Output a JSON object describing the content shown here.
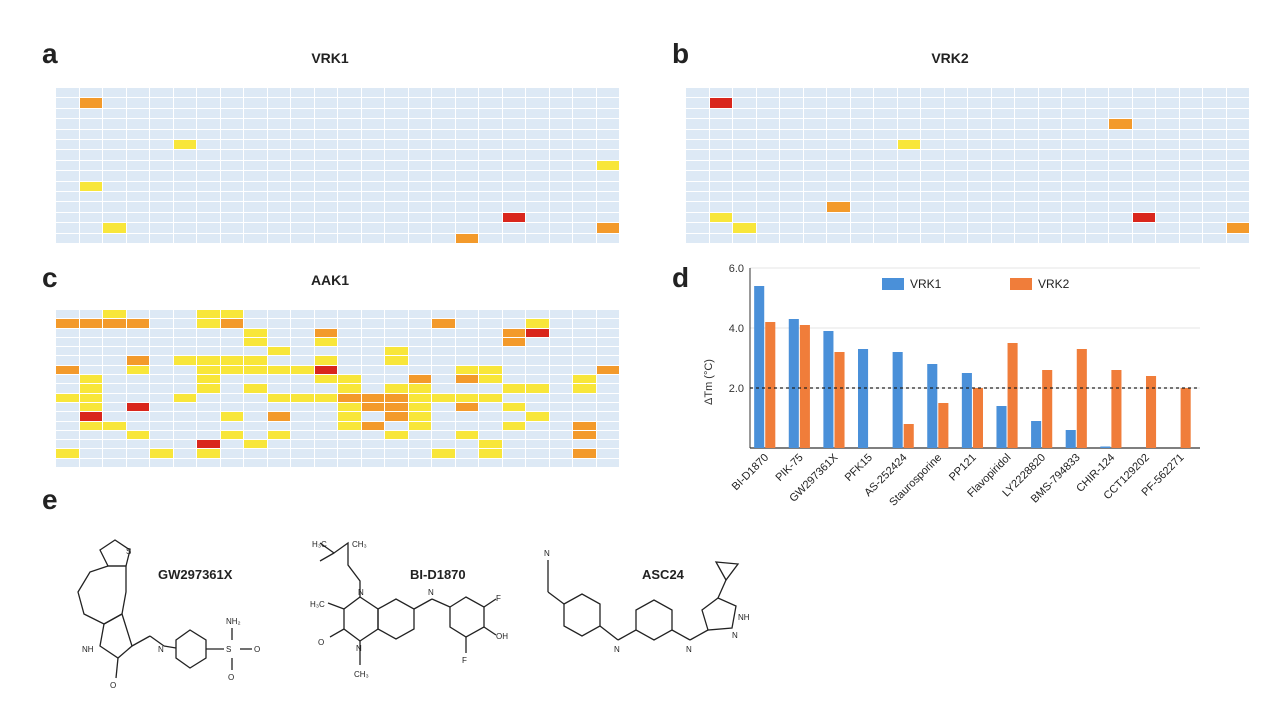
{
  "panels": {
    "a": {
      "letter": "a",
      "title": "VRK1"
    },
    "b": {
      "letter": "b",
      "title": "VRK2"
    },
    "c": {
      "letter": "c",
      "title": "AAK1"
    },
    "d": {
      "letter": "d"
    },
    "e": {
      "letter": "e"
    }
  },
  "heatmap_colors": {
    "base": "#dde9f5",
    "low": "#f8e63a",
    "mid": "#f39a2b",
    "high": "#d9261c"
  },
  "heatmaps": {
    "vrk1": {
      "rows": 15,
      "cols": 24,
      "hits": [
        [
          1,
          1,
          2
        ],
        [
          5,
          5,
          1
        ],
        [
          7,
          23,
          1
        ],
        [
          9,
          1,
          1
        ],
        [
          12,
          19,
          3
        ],
        [
          13,
          2,
          1
        ],
        [
          13,
          23,
          2
        ],
        [
          14,
          17,
          2
        ]
      ]
    },
    "vrk2": {
      "rows": 15,
      "cols": 24,
      "hits": [
        [
          1,
          1,
          3
        ],
        [
          3,
          18,
          2
        ],
        [
          5,
          9,
          1
        ],
        [
          11,
          6,
          2
        ],
        [
          12,
          1,
          1
        ],
        [
          12,
          19,
          3
        ],
        [
          13,
          2,
          1
        ],
        [
          13,
          23,
          2
        ],
        [
          15,
          6,
          1
        ]
      ]
    },
    "aak1": {
      "rows": 17,
      "cols": 24,
      "hits": [
        [
          0,
          2,
          1
        ],
        [
          0,
          6,
          1
        ],
        [
          0,
          7,
          1
        ],
        [
          1,
          0,
          2
        ],
        [
          1,
          1,
          2
        ],
        [
          1,
          2,
          2
        ],
        [
          1,
          3,
          2
        ],
        [
          1,
          6,
          1
        ],
        [
          1,
          7,
          2
        ],
        [
          1,
          16,
          2
        ],
        [
          1,
          20,
          1
        ],
        [
          2,
          8,
          1
        ],
        [
          2,
          11,
          2
        ],
        [
          2,
          19,
          2
        ],
        [
          2,
          20,
          3
        ],
        [
          3,
          8,
          1
        ],
        [
          3,
          11,
          1
        ],
        [
          3,
          19,
          2
        ],
        [
          4,
          9,
          1
        ],
        [
          4,
          14,
          1
        ],
        [
          5,
          3,
          2
        ],
        [
          5,
          5,
          1
        ],
        [
          5,
          6,
          1
        ],
        [
          5,
          7,
          1
        ],
        [
          5,
          8,
          1
        ],
        [
          5,
          11,
          1
        ],
        [
          5,
          14,
          1
        ],
        [
          6,
          0,
          2
        ],
        [
          6,
          3,
          1
        ],
        [
          6,
          6,
          1
        ],
        [
          6,
          7,
          1
        ],
        [
          6,
          8,
          1
        ],
        [
          6,
          9,
          1
        ],
        [
          6,
          10,
          1
        ],
        [
          6,
          11,
          3
        ],
        [
          6,
          17,
          1
        ],
        [
          6,
          18,
          1
        ],
        [
          6,
          23,
          2
        ],
        [
          7,
          1,
          1
        ],
        [
          7,
          6,
          1
        ],
        [
          7,
          11,
          1
        ],
        [
          7,
          12,
          1
        ],
        [
          7,
          15,
          2
        ],
        [
          7,
          17,
          2
        ],
        [
          7,
          18,
          1
        ],
        [
          7,
          22,
          1
        ],
        [
          8,
          1,
          1
        ],
        [
          8,
          6,
          1
        ],
        [
          8,
          8,
          1
        ],
        [
          8,
          12,
          1
        ],
        [
          8,
          14,
          1
        ],
        [
          8,
          15,
          1
        ],
        [
          8,
          19,
          1
        ],
        [
          8,
          20,
          1
        ],
        [
          8,
          22,
          1
        ],
        [
          9,
          0,
          1
        ],
        [
          9,
          1,
          1
        ],
        [
          9,
          5,
          1
        ],
        [
          9,
          9,
          1
        ],
        [
          9,
          10,
          1
        ],
        [
          9,
          11,
          1
        ],
        [
          9,
          12,
          2
        ],
        [
          9,
          13,
          2
        ],
        [
          9,
          14,
          2
        ],
        [
          9,
          15,
          1
        ],
        [
          9,
          16,
          1
        ],
        [
          9,
          17,
          1
        ],
        [
          9,
          18,
          1
        ],
        [
          10,
          1,
          1
        ],
        [
          10,
          3,
          3
        ],
        [
          10,
          12,
          1
        ],
        [
          10,
          13,
          2
        ],
        [
          10,
          14,
          2
        ],
        [
          10,
          15,
          1
        ],
        [
          10,
          17,
          2
        ],
        [
          10,
          19,
          1
        ],
        [
          11,
          1,
          3
        ],
        [
          11,
          7,
          1
        ],
        [
          11,
          9,
          2
        ],
        [
          11,
          12,
          1
        ],
        [
          11,
          14,
          2
        ],
        [
          11,
          15,
          1
        ],
        [
          11,
          20,
          1
        ],
        [
          12,
          1,
          1
        ],
        [
          12,
          2,
          1
        ],
        [
          12,
          12,
          1
        ],
        [
          12,
          13,
          2
        ],
        [
          12,
          15,
          1
        ],
        [
          12,
          19,
          1
        ],
        [
          12,
          22,
          2
        ],
        [
          13,
          3,
          1
        ],
        [
          13,
          7,
          1
        ],
        [
          13,
          9,
          1
        ],
        [
          13,
          14,
          1
        ],
        [
          13,
          17,
          1
        ],
        [
          13,
          22,
          2
        ],
        [
          14,
          6,
          3
        ],
        [
          14,
          8,
          1
        ],
        [
          14,
          18,
          1
        ],
        [
          15,
          0,
          1
        ],
        [
          15,
          4,
          1
        ],
        [
          15,
          6,
          1
        ],
        [
          15,
          16,
          1
        ],
        [
          15,
          18,
          1
        ],
        [
          15,
          22,
          2
        ]
      ]
    }
  },
  "chart_data": {
    "type": "bar",
    "title": "",
    "xlabel": "",
    "ylabel": "ΔTm (°C)",
    "ylim": [
      0,
      6
    ],
    "yticks": [
      "2.0",
      "4.0",
      "6.0"
    ],
    "threshold": 2.0,
    "legend_position": "top-center",
    "categories": [
      "BI-D1870",
      "PIK-75",
      "GW297361X",
      "PFK15",
      "AS-252424",
      "Staurosporine",
      "PP121",
      "Flavopiridol",
      "LY2228820",
      "BMS-794833",
      "CHIR-124",
      "CCT129202",
      "PF-562271"
    ],
    "series": [
      {
        "name": "VRK1",
        "color": "#4a90d9",
        "values": [
          5.4,
          4.3,
          3.9,
          3.3,
          3.2,
          2.8,
          2.5,
          1.4,
          0.9,
          0.6,
          0.05,
          0,
          0
        ]
      },
      {
        "name": "VRK2",
        "color": "#f07d3a",
        "values": [
          4.2,
          4.1,
          3.2,
          0,
          0.8,
          1.5,
          2.0,
          3.5,
          2.6,
          3.3,
          2.6,
          2.4,
          2.0
        ]
      }
    ]
  },
  "molecules": {
    "m1": {
      "name": "GW297361X"
    },
    "m2": {
      "name": "BI-D1870"
    },
    "m3": {
      "name": "ASC24"
    }
  }
}
